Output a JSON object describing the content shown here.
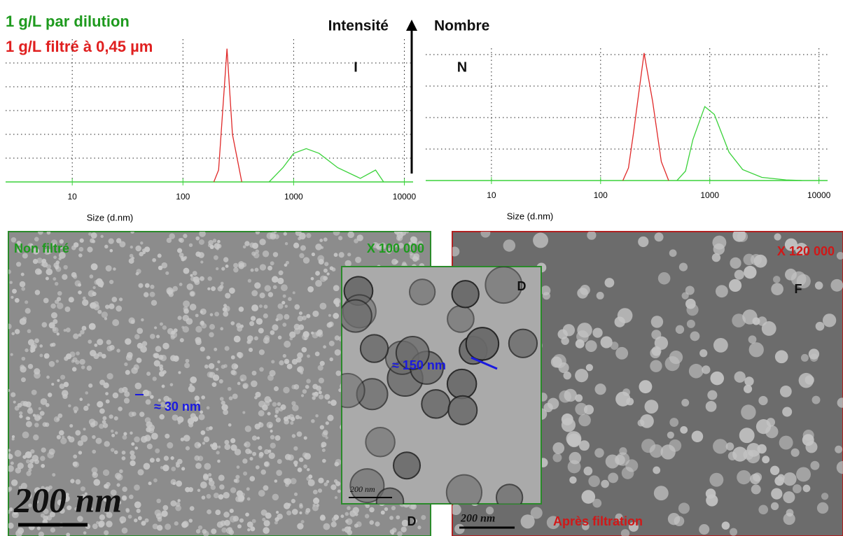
{
  "chart_data": [
    {
      "type": "line",
      "title": "Intensité",
      "panel_label": "I",
      "xlabel": "Size (d.nm)",
      "log_x": true,
      "xlim": [
        2.5,
        12000
      ],
      "xticks": [
        10,
        100,
        1000,
        10000
      ],
      "ylim": [
        0,
        6
      ],
      "yticks": [
        1,
        2,
        3,
        4,
        5
      ],
      "grid": true,
      "series": [
        {
          "name": "1 g/L par dilution",
          "color": "#3ad23a",
          "x": [
            600,
            800,
            1000,
            1300,
            1700,
            2500,
            4000,
            5500,
            6500
          ],
          "values": [
            0,
            0.6,
            1.2,
            1.4,
            1.2,
            0.6,
            0.15,
            0.5,
            0
          ]
        },
        {
          "name": "1 g/L filtré à 0,45 µm",
          "color": "#e02828",
          "x": [
            190,
            210,
            250,
            280,
            340
          ],
          "values": [
            0,
            0.5,
            5.6,
            2,
            0
          ]
        }
      ]
    },
    {
      "type": "line",
      "title": "Nombre",
      "panel_label": "N",
      "xlabel": "Size (d.nm)",
      "log_x": true,
      "xlim": [
        2.5,
        12000
      ],
      "xticks": [
        10,
        100,
        1000,
        10000
      ],
      "ylim": [
        0,
        4.2
      ],
      "yticks": [
        1,
        2,
        3,
        4
      ],
      "grid": true,
      "series": [
        {
          "color": "#3ad23a",
          "x": [
            500,
            600,
            700,
            900,
            1100,
            1500,
            2000,
            3000,
            5000,
            7000
          ],
          "values": [
            0,
            0.3,
            1.3,
            2.35,
            2.1,
            0.9,
            0.35,
            0.1,
            0.02,
            0
          ]
        },
        {
          "color": "#e02828",
          "x": [
            160,
            180,
            200,
            250,
            300,
            360,
            420
          ],
          "values": [
            0,
            0.4,
            1.5,
            4.05,
            2.5,
            0.6,
            0
          ]
        }
      ]
    }
  ],
  "micrographs": {
    "left": {
      "label": "Non filtré",
      "magnification": "X 100 000",
      "size": "≈ 30 nm",
      "scale": "200 nm",
      "corner": "D"
    },
    "inset": {
      "corner": "D",
      "size": "≈ 150 nm",
      "scale": "200 nm"
    },
    "right": {
      "magnification": "X 120 000",
      "corner": "F",
      "scale": "200 nm",
      "label": "Après filtration"
    }
  }
}
